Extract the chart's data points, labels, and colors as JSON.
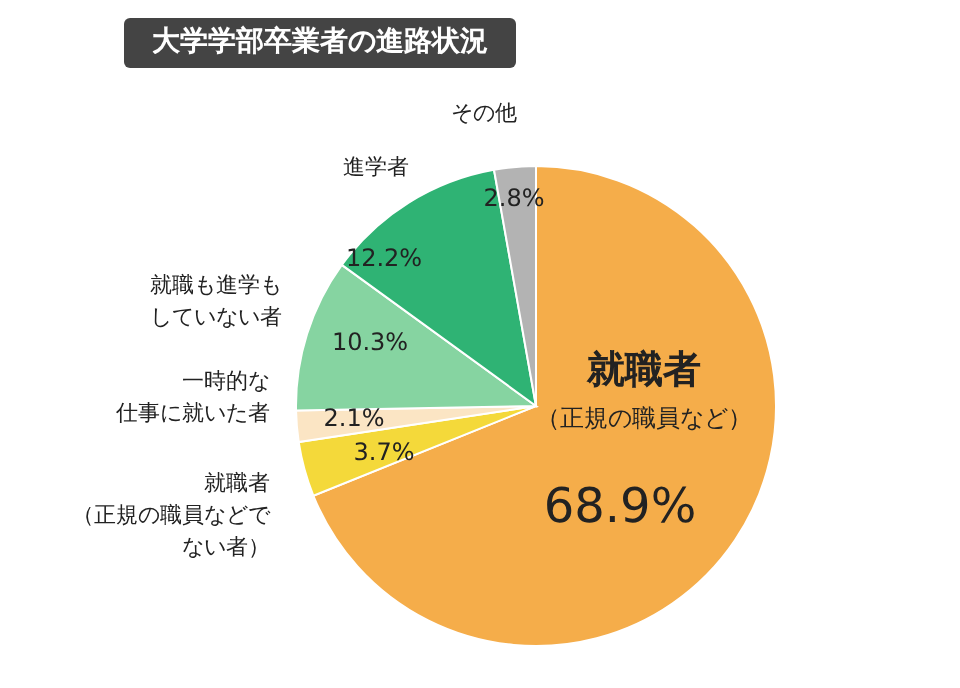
{
  "chart_data": {
    "type": "pie",
    "title": "大学学部卒業者の進路状況",
    "categories": [
      "就職者（正規の職員など）",
      "就職者（正規の職員などでない者）",
      "一時的な仕事に就いた者",
      "就職も進学もしていない者",
      "進学者",
      "その他"
    ],
    "values": [
      68.9,
      3.7,
      2.1,
      10.3,
      12.2,
      2.8
    ],
    "value_labels": [
      "68.9%",
      "3.7%",
      "2.1%",
      "10.3%",
      "12.2%",
      "2.8%"
    ],
    "colors": [
      "#f5ad4a",
      "#f4d93a",
      "#fbe5c4",
      "#86d4a1",
      "#2fb374",
      "#b3b3b3"
    ]
  }
}
